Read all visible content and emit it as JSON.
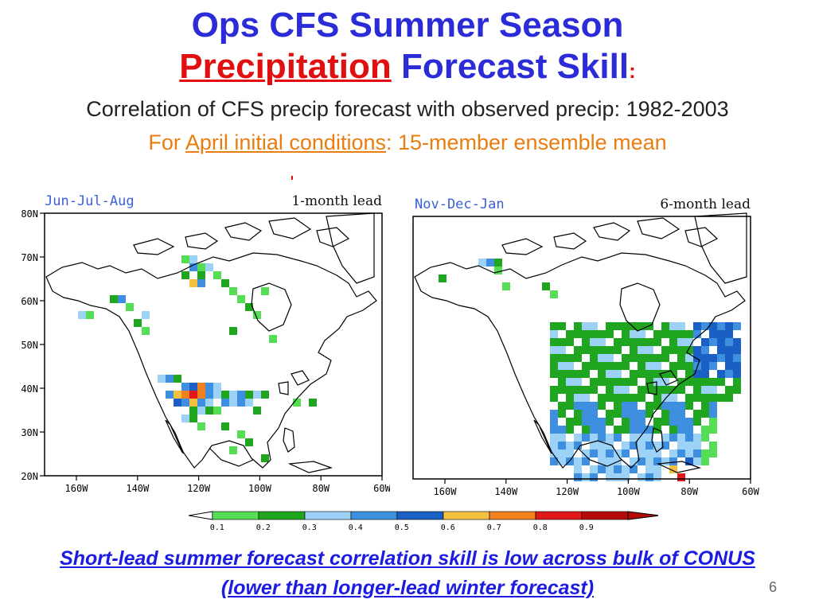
{
  "title": {
    "line1": "Ops CFS Summer Season",
    "line2_highlight": "Precipitation",
    "line2_rest": " Forecast Skill",
    "line2_colon": ":"
  },
  "subtitle": {
    "line1": "Correlation of CFS precip forecast with observed precip: 1982-2003",
    "line2_pre": "For ",
    "line2_link": "April initial conditions",
    "line2_post": ": 15-member ensemble mean"
  },
  "maps": [
    {
      "season": "Jun-Jul-Aug",
      "lead": "1-month lead",
      "lat_labels": [
        "80N",
        "70N",
        "60N",
        "50N",
        "40N",
        "30N",
        "20N"
      ],
      "lon_labels": [
        "160W",
        "140W",
        "120W",
        "100W",
        "80W",
        "60W"
      ]
    },
    {
      "season": "Nov-Dec-Jan",
      "lead": "6-month lead",
      "lat_labels": [],
      "lon_labels": [
        "160W",
        "140W",
        "120W",
        "100W",
        "80W",
        "60W"
      ]
    }
  ],
  "colorbar": {
    "labels": [
      "0.1",
      "0.2",
      "0.3",
      "0.4",
      "0.5",
      "0.6",
      "0.7",
      "0.8",
      "0.9"
    ],
    "colors": [
      "#55dd55",
      "#1fa51f",
      "#9cd2f5",
      "#3e8fe0",
      "#1a5fc4",
      "#f5c040",
      "#f08020",
      "#e01818",
      "#b40a0a"
    ]
  },
  "caption": {
    "line1": "Short-lead summer forecast correlation skill is low across bulk of CONUS",
    "line2": "(lower than longer-lead winter forecast)"
  },
  "page_number": "6",
  "colors": {
    "title_blue": "#2b2bd8",
    "title_red": "#e01010",
    "subtitle_orange": "#e87d10",
    "caption_blue": "#1c1ce0"
  }
}
